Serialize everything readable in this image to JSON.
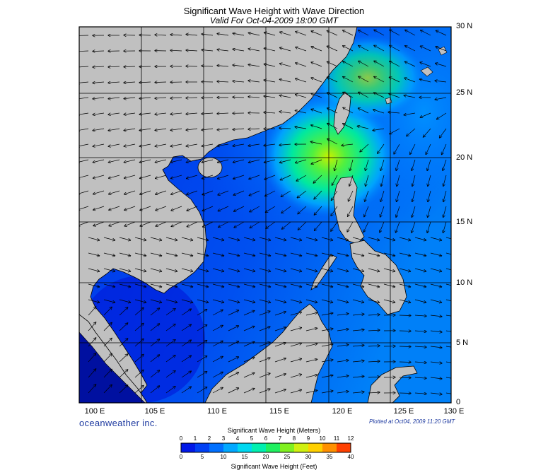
{
  "title": "Significant Wave Height with Wave Direction",
  "subtitle": "Valid For Oct-04-2009 18:00 GMT",
  "brand": "oceanweather inc.",
  "plotted": "Plotted at Oct04, 2009 11:20 GMT",
  "lon_labels": [
    "100 E",
    "105 E",
    "110 E",
    "115 E",
    "120 E",
    "125 E",
    "130 E"
  ],
  "lat_labels": [
    "30 N",
    "25 N",
    "20 N",
    "15 N",
    "10 N",
    "5 N",
    "0"
  ],
  "colorbar": {
    "title_top": "Significant Wave Height (Meters)",
    "title_bottom": "Significant Wave Height (Feet)",
    "meter_ticks": [
      "0",
      "1",
      "2",
      "3",
      "4",
      "5",
      "6",
      "7",
      "8",
      "9",
      "10",
      "11",
      "12"
    ],
    "feet_ticks": [
      "0",
      "5",
      "10",
      "15",
      "20",
      "25",
      "30",
      "35",
      "40"
    ],
    "colors": [
      "#0018e8",
      "#0040f4",
      "#0070ff",
      "#00a8ff",
      "#00d8f0",
      "#00f0b0",
      "#20f060",
      "#80f020",
      "#d0f010",
      "#ffd000",
      "#ff9000",
      "#ff4000"
    ]
  },
  "colors": {
    "land": "#c0c0c0",
    "ocean_low": "#1030e8",
    "ocean_high": "#20f060"
  }
}
